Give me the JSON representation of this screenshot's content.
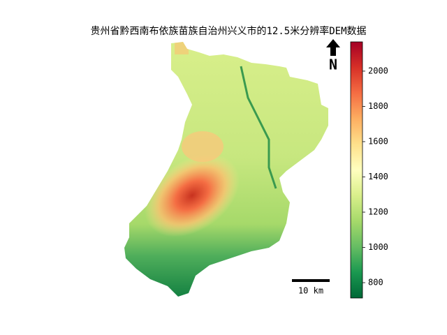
{
  "title": "贵州省黔西南布依族苗族自治州兴义市的12.5米分辨率DEM数据",
  "colorbar": {
    "range": [
      713,
      2166
    ],
    "ticks": [
      800,
      1000,
      1200,
      1400,
      1600,
      1800,
      2000
    ],
    "colors": [
      "#006837",
      "#1a9850",
      "#66bd63",
      "#a6d96a",
      "#d9ef8b",
      "#ffffbf",
      "#fee08b",
      "#fdae61",
      "#f46d43",
      "#d73027",
      "#a50026"
    ]
  },
  "north_arrow": {
    "label": "N"
  },
  "scale_bar": {
    "label": "10 km"
  }
}
